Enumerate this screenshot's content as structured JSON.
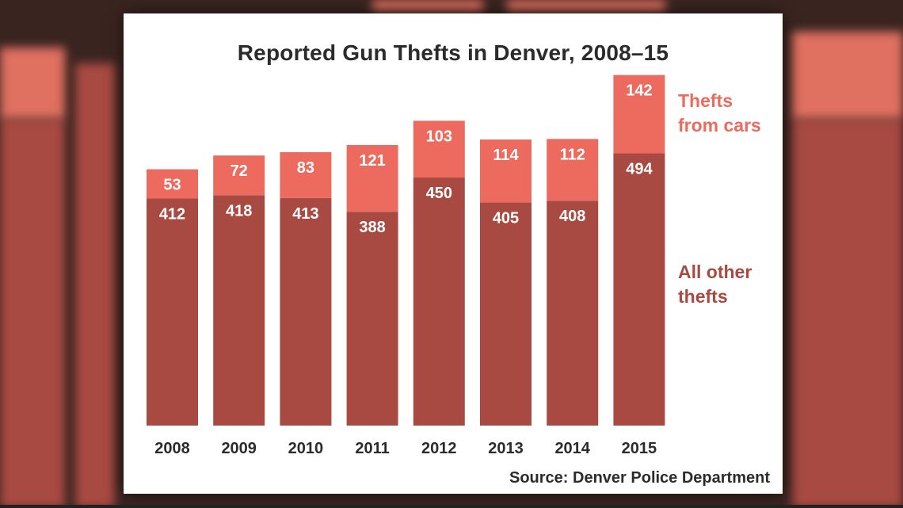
{
  "chart_data": {
    "type": "bar",
    "stacked": true,
    "title": "Reported Gun Thefts in Denver, 2008–15",
    "categories": [
      "2008",
      "2009",
      "2010",
      "2011",
      "2012",
      "2013",
      "2014",
      "2015"
    ],
    "series": [
      {
        "name": "All other thefts",
        "values": [
          412,
          418,
          413,
          388,
          450,
          405,
          408,
          494
        ],
        "color": "#a84a42"
      },
      {
        "name": "Thefts from cars",
        "values": [
          53,
          72,
          83,
          121,
          103,
          114,
          112,
          142
        ],
        "color": "#ec6b5e"
      }
    ],
    "legend": {
      "cars_line1": "Thefts",
      "cars_line2": "from cars",
      "other_line1": "All other",
      "other_line2": "thefts",
      "placement": "right"
    },
    "source": "Source: Denver Police Department",
    "grid": false
  }
}
